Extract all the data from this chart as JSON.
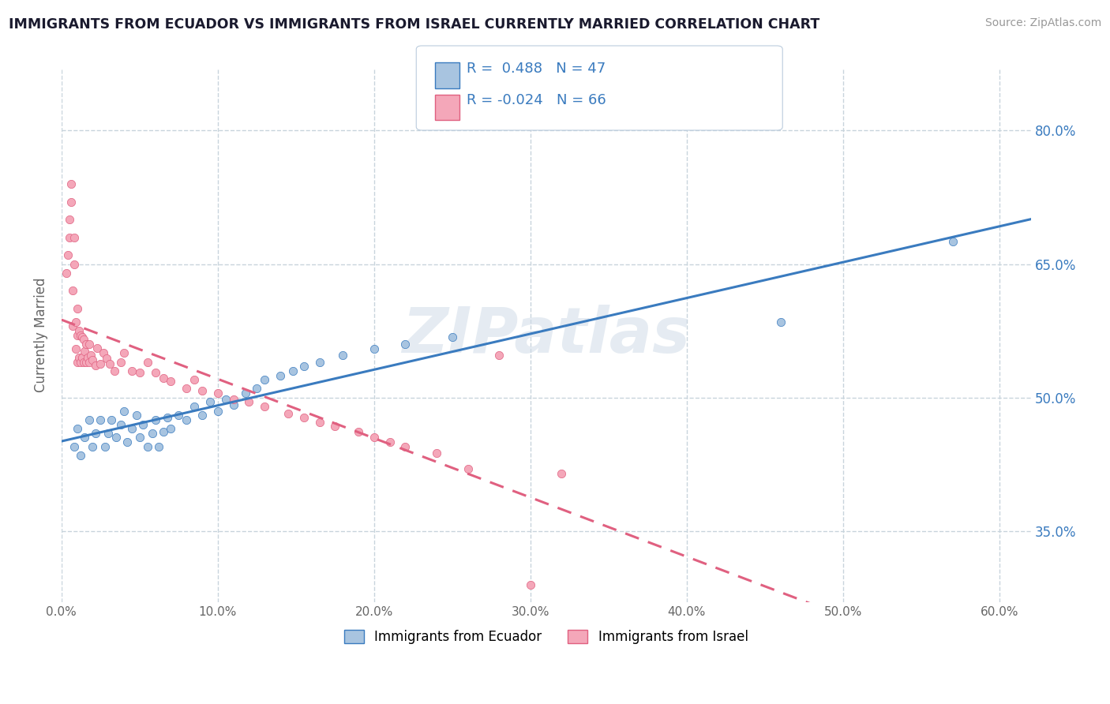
{
  "title": "IMMIGRANTS FROM ECUADOR VS IMMIGRANTS FROM ISRAEL CURRENTLY MARRIED CORRELATION CHART",
  "source": "Source: ZipAtlas.com",
  "ylabel": "Currently Married",
  "legend_label1": "Immigrants from Ecuador",
  "legend_label2": "Immigrants from Israel",
  "r1": "0.488",
  "n1": "47",
  "r2": "-0.024",
  "n2": "66",
  "color1": "#a8c4e0",
  "color2": "#f4a7b9",
  "line_color1": "#3a7bbf",
  "line_color2": "#e06080",
  "xlim": [
    0.0,
    0.62
  ],
  "ylim": [
    0.27,
    0.87
  ],
  "yticks_right": [
    0.35,
    0.5,
    0.65,
    0.8
  ],
  "ytick_labels_right": [
    "35.0%",
    "50.0%",
    "65.0%",
    "80.0%"
  ],
  "xticks": [
    0.0,
    0.1,
    0.2,
    0.3,
    0.4,
    0.5,
    0.6
  ],
  "xtick_labels": [
    "0.0%",
    "10.0%",
    "20.0%",
    "30.0%",
    "40.0%",
    "50.0%",
    "60.0%"
  ],
  "watermark": "ZIPatlas",
  "background_color": "#ffffff",
  "grid_color": "#c8d4dc",
  "ecuador_x": [
    0.008,
    0.01,
    0.012,
    0.015,
    0.018,
    0.02,
    0.022,
    0.025,
    0.028,
    0.03,
    0.032,
    0.035,
    0.038,
    0.04,
    0.042,
    0.045,
    0.048,
    0.05,
    0.052,
    0.055,
    0.058,
    0.06,
    0.062,
    0.065,
    0.068,
    0.07,
    0.075,
    0.08,
    0.085,
    0.09,
    0.095,
    0.1,
    0.105,
    0.11,
    0.118,
    0.125,
    0.13,
    0.14,
    0.148,
    0.155,
    0.165,
    0.18,
    0.2,
    0.22,
    0.25,
    0.46,
    0.57
  ],
  "ecuador_y": [
    0.445,
    0.465,
    0.435,
    0.455,
    0.475,
    0.445,
    0.46,
    0.475,
    0.445,
    0.46,
    0.475,
    0.455,
    0.47,
    0.485,
    0.45,
    0.465,
    0.48,
    0.455,
    0.47,
    0.445,
    0.46,
    0.475,
    0.445,
    0.462,
    0.478,
    0.465,
    0.48,
    0.475,
    0.49,
    0.48,
    0.495,
    0.485,
    0.498,
    0.492,
    0.505,
    0.51,
    0.52,
    0.525,
    0.53,
    0.535,
    0.54,
    0.548,
    0.555,
    0.56,
    0.568,
    0.585,
    0.675
  ],
  "israel_x": [
    0.003,
    0.004,
    0.005,
    0.005,
    0.006,
    0.006,
    0.007,
    0.007,
    0.008,
    0.008,
    0.009,
    0.009,
    0.01,
    0.01,
    0.01,
    0.011,
    0.011,
    0.012,
    0.012,
    0.013,
    0.013,
    0.014,
    0.014,
    0.015,
    0.016,
    0.016,
    0.017,
    0.018,
    0.018,
    0.019,
    0.02,
    0.022,
    0.023,
    0.025,
    0.027,
    0.029,
    0.031,
    0.034,
    0.038,
    0.04,
    0.045,
    0.05,
    0.055,
    0.06,
    0.065,
    0.07,
    0.08,
    0.085,
    0.09,
    0.1,
    0.11,
    0.12,
    0.13,
    0.145,
    0.155,
    0.165,
    0.175,
    0.19,
    0.2,
    0.21,
    0.22,
    0.24,
    0.26,
    0.28,
    0.3,
    0.32
  ],
  "israel_y": [
    0.64,
    0.66,
    0.68,
    0.7,
    0.72,
    0.74,
    0.58,
    0.62,
    0.65,
    0.68,
    0.555,
    0.585,
    0.54,
    0.57,
    0.6,
    0.545,
    0.575,
    0.54,
    0.57,
    0.545,
    0.568,
    0.54,
    0.565,
    0.552,
    0.54,
    0.56,
    0.545,
    0.54,
    0.56,
    0.548,
    0.542,
    0.536,
    0.556,
    0.538,
    0.55,
    0.544,
    0.538,
    0.53,
    0.54,
    0.55,
    0.53,
    0.528,
    0.54,
    0.528,
    0.522,
    0.518,
    0.51,
    0.52,
    0.508,
    0.505,
    0.498,
    0.495,
    0.49,
    0.482,
    0.478,
    0.472,
    0.468,
    0.462,
    0.455,
    0.45,
    0.445,
    0.438,
    0.42,
    0.548,
    0.29,
    0.415
  ]
}
